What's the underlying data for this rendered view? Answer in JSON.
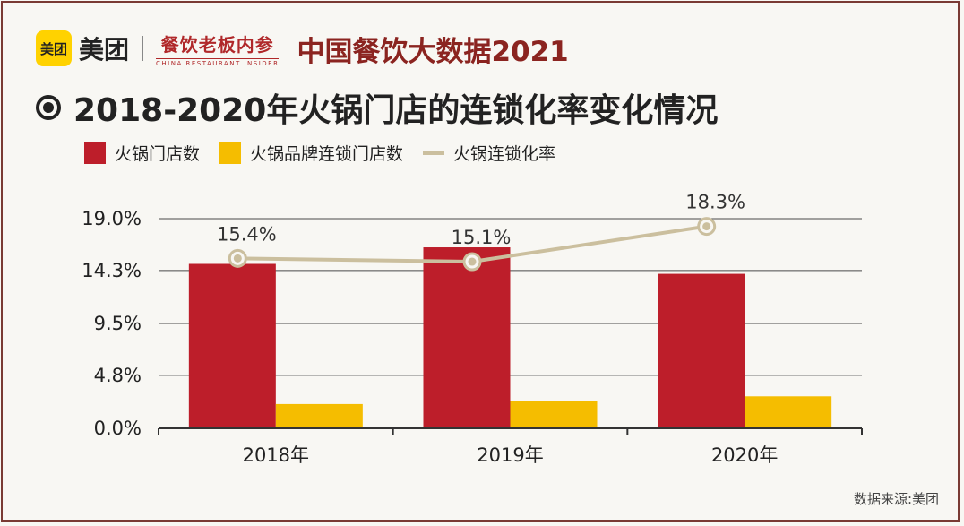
{
  "header": {
    "logo_mark": "美团",
    "brand": "美团",
    "partner_cn": "餐饮老板内参",
    "partner_en": "CHINA RESTAURANT INSIDER",
    "report": "中国餐饮大数据2021"
  },
  "title": "2018-2020年火锅门店的连锁化率变化情况",
  "source": "数据来源:美团",
  "colors": {
    "total_stores": "#bd1e2a",
    "chain_stores": "#f5bd00",
    "chain_rate": "#cbbf9e",
    "grid": "#4a4a4a"
  },
  "chart_data": {
    "type": "bar",
    "categories": [
      "2018年",
      "2019年",
      "2020年"
    ],
    "series": [
      {
        "name": "火锅门店数",
        "kind": "bar",
        "values": [
          14.9,
          16.4,
          14.0
        ]
      },
      {
        "name": "火锅品牌连锁门店数",
        "kind": "bar",
        "values": [
          2.2,
          2.5,
          2.9
        ]
      },
      {
        "name": "火锅连锁化率",
        "kind": "line",
        "values": [
          15.4,
          15.1,
          18.3
        ],
        "labels": [
          "15.4%",
          "15.1%",
          "18.3%"
        ]
      }
    ],
    "yticks": [
      "0.0%",
      "4.8%",
      "9.5%",
      "14.3%",
      "19.0%"
    ],
    "ytick_values": [
      0,
      4.8,
      9.5,
      14.3,
      19.0
    ],
    "ylim": [
      0,
      19.0
    ],
    "grid": true,
    "legend_position": "top-left"
  }
}
